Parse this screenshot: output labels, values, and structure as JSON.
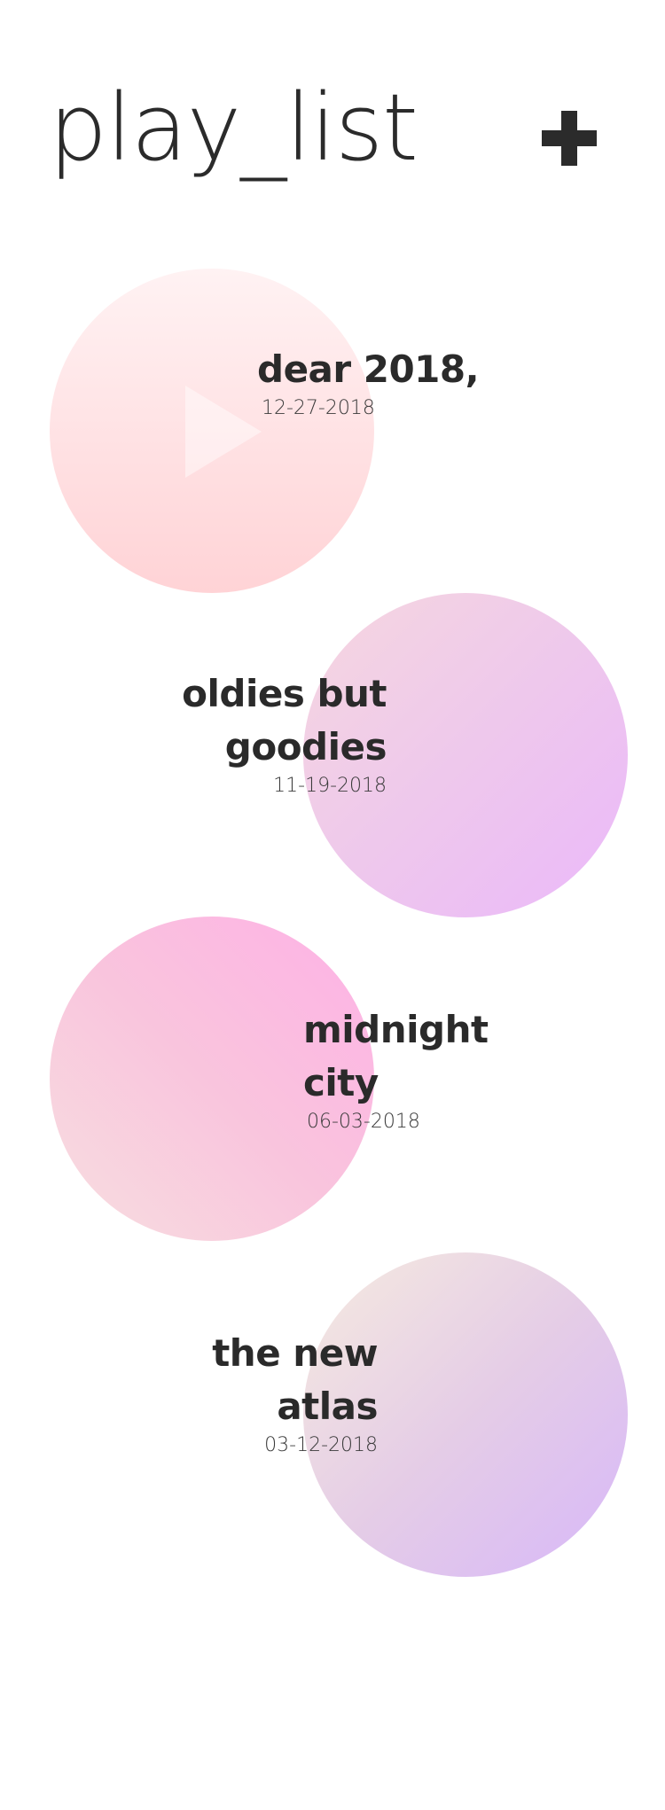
{
  "header": {
    "title": "play_list"
  },
  "playlists": [
    {
      "title": "dear 2018,",
      "date": "12-27-2018",
      "gradient": [
        "#fff2f3",
        "#ffd3d6"
      ],
      "icon": "play-icon"
    },
    {
      "title_line1": "oldies but",
      "title_line2": "goodies",
      "date": "11-19-2018",
      "gradient": [
        "#f6d5e0",
        "#ecbaf6"
      ]
    },
    {
      "title_line1": "midnight",
      "title_line2": "city",
      "date": "06-03-2018",
      "gradient": [
        "#fdb3e4",
        "#f7dbe1"
      ]
    },
    {
      "title_line1": "the new",
      "title_line2": "atlas",
      "date": "03-12-2018",
      "gradient": [
        "#f5e5e3",
        "#d8b9f6"
      ]
    }
  ]
}
